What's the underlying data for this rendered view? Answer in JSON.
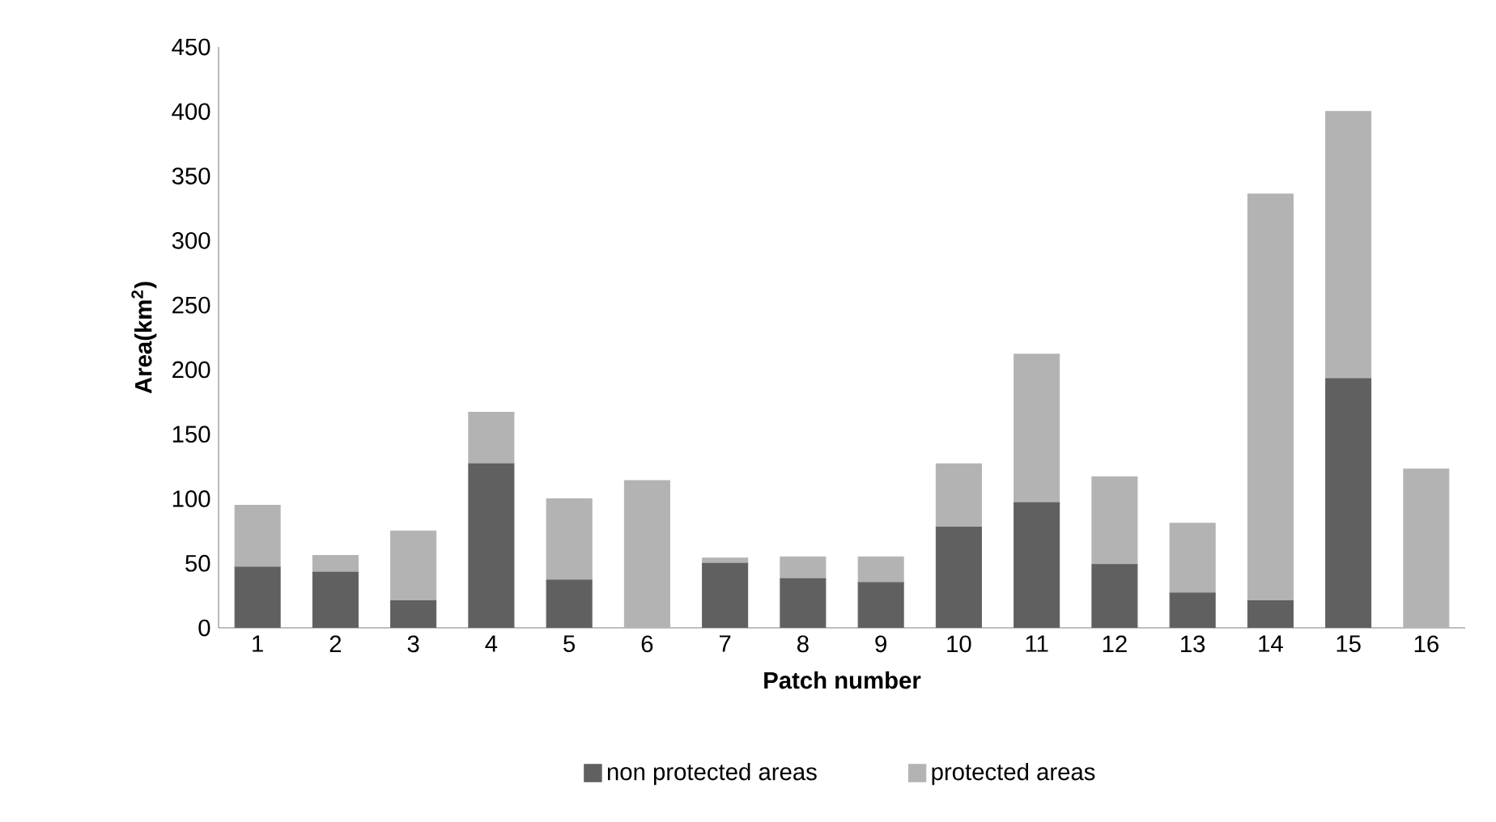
{
  "chart_data": {
    "type": "bar",
    "stacked": true,
    "xlabel": "Patch number",
    "ylabel": "Area(km$^{2}$)",
    "categories": [
      "1",
      "2",
      "3",
      "4",
      "5",
      "6",
      "7",
      "8",
      "9",
      "10",
      "11",
      "12",
      "13",
      "14",
      "15",
      "16"
    ],
    "series": [
      {
        "name": "non protected areas",
        "color": "#606060",
        "values": [
          47,
          43,
          21,
          127,
          37,
          0,
          50,
          38,
          35,
          78,
          97,
          49,
          27,
          21,
          193,
          0
        ]
      },
      {
        "name": "protected areas",
        "color": "#b3b3b3",
        "values": [
          48,
          13,
          54,
          40,
          63,
          114,
          4,
          17,
          20,
          49,
          115,
          68,
          54,
          315,
          207,
          123
        ]
      }
    ],
    "ylim": [
      0,
      450
    ],
    "yticks": [
      0,
      50,
      100,
      150,
      200,
      250,
      300,
      350,
      400,
      450
    ],
    "grid": false,
    "legend": "bottom"
  }
}
